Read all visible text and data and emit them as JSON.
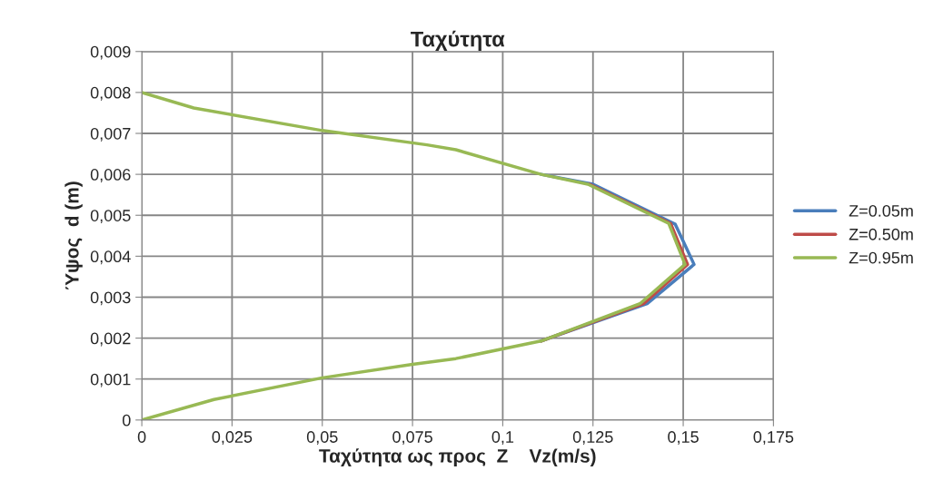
{
  "chart_data": {
    "type": "line",
    "title": "Ταχύτητα",
    "xlabel": "Ταχύτητα ως προς  Z    Vz(m/s)",
    "ylabel": "Ύψος  d (m)",
    "series": [
      {
        "name": "Z=0.05m",
        "color": "#4a7ebb",
        "x": [
          0.1106,
          0.14,
          0.153,
          0.1478,
          0.125,
          0.1106
        ],
        "values": [
          0.00193,
          0.00284,
          0.0038,
          0.00478,
          0.00576,
          0.006
        ]
      },
      {
        "name": "Z=0.50m",
        "color": "#be4b48",
        "x": [
          0.1106,
          0.139,
          0.1512,
          0.1465,
          0.124
        ],
        "values": [
          0.00193,
          0.00284,
          0.0038,
          0.0048,
          0.00576
        ]
      },
      {
        "name": "Z=0.95m",
        "color": "#98b954",
        "x": [
          0,
          0.02,
          0.05,
          0.075,
          0.087,
          0.1106,
          0.138,
          0.1505,
          0.146,
          0.1236,
          0.1106,
          0.087,
          0.079,
          0.05,
          0.0144,
          0
        ],
        "values": [
          0,
          0.0005,
          0.00103,
          0.00136,
          0.0015,
          0.00193,
          0.00284,
          0.0038,
          0.0048,
          0.00576,
          0.006,
          0.0066,
          0.00672,
          0.00707,
          0.00762,
          0.008
        ]
      }
    ],
    "xlim": [
      0,
      0.175
    ],
    "xticks": [
      0,
      {
        "value": 0.025,
        "label": "0,025"
      },
      {
        "value": 0.05,
        "label": "0,05"
      },
      {
        "value": 0.075,
        "label": "0,075"
      },
      {
        "value": 0.1,
        "label": "0,1"
      },
      {
        "value": 0.125,
        "label": "0,125"
      },
      {
        "value": 0.15,
        "label": "0,15"
      },
      {
        "value": 0.175,
        "label": "0,175"
      }
    ],
    "ylim": [
      0,
      0.009
    ],
    "yticks": [
      0,
      {
        "value": 0.001,
        "label": "0,001"
      },
      {
        "value": 0.002,
        "label": "0,002"
      },
      {
        "value": 0.003,
        "label": "0,003"
      },
      {
        "value": 0.004,
        "label": "0,004"
      },
      {
        "value": 0.005,
        "label": "0,005"
      },
      {
        "value": 0.006,
        "label": "0,006"
      },
      {
        "value": 0.007,
        "label": "0,007"
      },
      {
        "value": 0.008,
        "label": "0,008"
      },
      {
        "value": 0.009,
        "label": "0,009"
      }
    ],
    "grid": true,
    "legend": "right",
    "line_style": "solid",
    "marker": "none"
  }
}
